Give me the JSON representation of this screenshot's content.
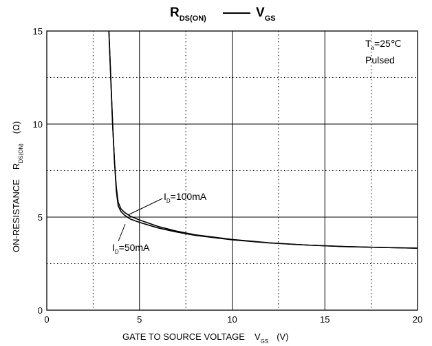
{
  "chart_data": {
    "type": "line",
    "title": {
      "left_main": "R",
      "left_sub": "DS(ON)",
      "right_main": "V",
      "right_sub": "GS"
    },
    "xlabel": {
      "text": "GATE TO SOURCE VOLTAGE",
      "symbol_main": "V",
      "symbol_sub": "GS",
      "unit": "(V)"
    },
    "ylabel": {
      "text": "ON-RESISTANCE",
      "symbol_main": "R",
      "symbol_sub": "DS(ON)",
      "unit": "(Ω)"
    },
    "xlim": [
      0,
      20
    ],
    "ylim": [
      0,
      15
    ],
    "x_ticks": [
      "0",
      "5",
      "10",
      "15",
      "20"
    ],
    "y_ticks": [
      "0",
      "5",
      "10",
      "15"
    ],
    "grid": {
      "solid_x": [
        5,
        10,
        15
      ],
      "solid_y": [
        5,
        10
      ],
      "dotted_x": [
        2.5,
        7.5,
        12.5,
        17.5
      ],
      "dotted_y": [
        2.5,
        7.5,
        12.5
      ]
    },
    "conditions": {
      "ta_main": "T",
      "ta_sub": "a",
      "ta_value": "=25℃",
      "mode": "Pulsed"
    },
    "series": [
      {
        "name": "I_D=100mA",
        "label_main": "I",
        "label_sub": "D",
        "label_value": "=100mA",
        "x": [
          3.35,
          3.45,
          3.55,
          3.65,
          3.75,
          3.85,
          4.0,
          4.2,
          4.5,
          5.0,
          6.0,
          7.0,
          8.0,
          10.0,
          12.0,
          14.0,
          16.0,
          18.0,
          20.0
        ],
        "y": [
          15.0,
          12.5,
          10.0,
          8.0,
          6.6,
          5.8,
          5.45,
          5.25,
          5.05,
          4.85,
          4.5,
          4.25,
          4.05,
          3.8,
          3.62,
          3.5,
          3.42,
          3.37,
          3.33
        ]
      },
      {
        "name": "I_D=50mA",
        "label_main": "I",
        "label_sub": "D",
        "label_value": "=50mA",
        "x": [
          3.35,
          3.45,
          3.55,
          3.65,
          3.75,
          3.85,
          4.0,
          4.2,
          4.5,
          5.0,
          6.0,
          7.0,
          8.0,
          10.0,
          12.0,
          14.0,
          16.0,
          18.0,
          20.0
        ],
        "y": [
          15.0,
          12.5,
          10.0,
          8.0,
          6.4,
          5.6,
          5.3,
          5.1,
          4.9,
          4.72,
          4.42,
          4.2,
          4.02,
          3.78,
          3.61,
          3.5,
          3.42,
          3.37,
          3.33
        ]
      }
    ]
  }
}
